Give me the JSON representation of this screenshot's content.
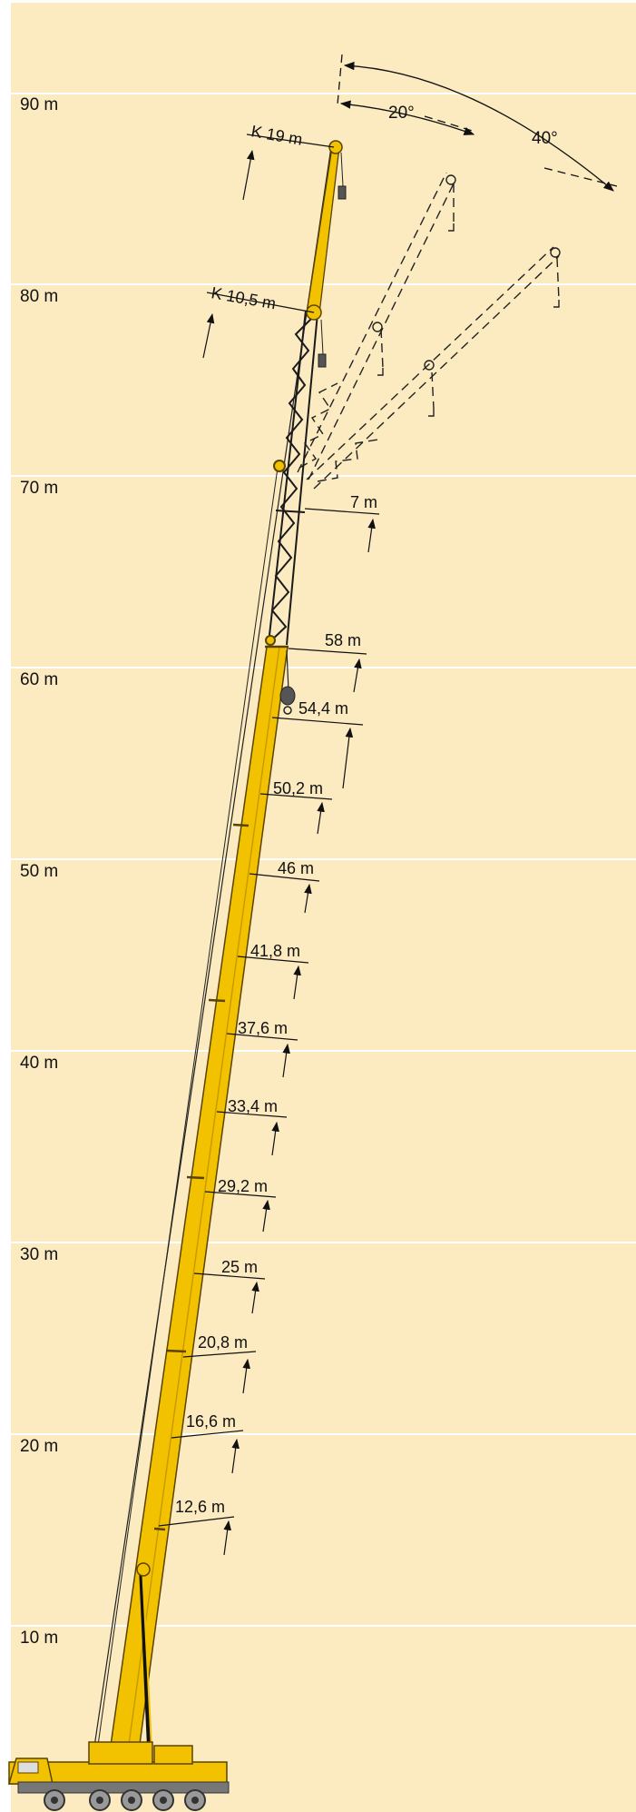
{
  "height_axis": {
    "unit": "m",
    "ticks": [
      "10 m",
      "20 m",
      "30 m",
      "40 m",
      "50 m",
      "60 m",
      "70 m",
      "80 m",
      "90 m"
    ]
  },
  "boom_lengths": [
    "12,6 m",
    "16,6 m",
    "20,8 m",
    "25 m",
    "29,2 m",
    "33,4 m",
    "37,6 m",
    "41,8 m",
    "46 m",
    "50,2 m",
    "54,4 m",
    "58 m"
  ],
  "extension_labels": {
    "lattice": "7 m",
    "jib_short": "K 10,5 m",
    "jib_long": "K 19 m"
  },
  "offset_angles": {
    "first": "20°",
    "second": "40°"
  },
  "colors": {
    "background": "#fcebc1",
    "gridline": "#ffffff",
    "boom": "#f2c200",
    "boom_outline": "#5a4300",
    "lattice": "#1a1a1a"
  }
}
